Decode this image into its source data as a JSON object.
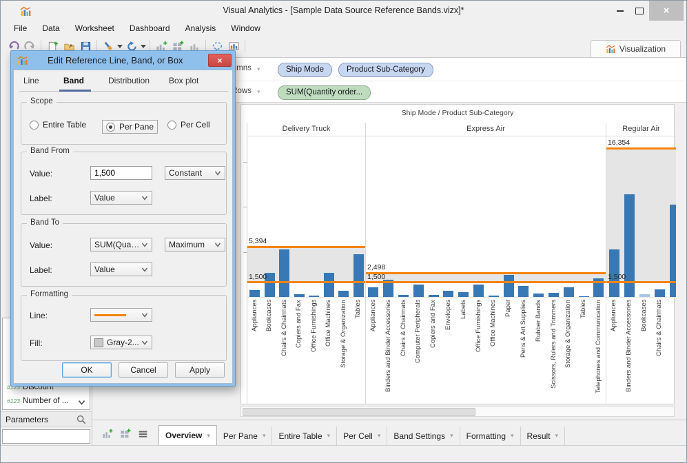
{
  "colors": {
    "accent_orange": "#f4840c",
    "bar_blue": "#3878b4",
    "bar_muted": "#a8c7e3",
    "band_fill": "#e5e5e5",
    "pill_blue": "#c7d6f1",
    "pill_green": "#bfdcbf"
  },
  "window": {
    "title": "Visual Analytics - [Sample Data Source Reference Bands.vizx]*"
  },
  "menu": {
    "items": [
      "File",
      "Data",
      "Worksheet",
      "Dashboard",
      "Analysis",
      "Window"
    ]
  },
  "toolbar": {
    "buttons": [
      {
        "icon": "undo"
      },
      {
        "icon": "redo"
      },
      {
        "sep": true
      },
      {
        "icon": "new-workbook"
      },
      {
        "icon": "open"
      },
      {
        "icon": "save"
      },
      {
        "sep": true
      },
      {
        "icon": "format-workbook",
        "caret": true
      },
      {
        "icon": "refresh",
        "caret": true
      },
      {
        "sep": true
      },
      {
        "icon": "add-worksheet"
      },
      {
        "icon": "add-dashboard"
      },
      {
        "icon": "duplicate-sheet"
      },
      {
        "sep": true
      },
      {
        "icon": "lasso-select"
      },
      {
        "icon": "presentation"
      },
      {
        "sep": true
      }
    ]
  },
  "viz_tab": {
    "label": "Visualization"
  },
  "shelves": {
    "columns_label": "Columns",
    "rows_label": "Rows",
    "columns_pills": [
      "Ship Mode",
      "Product Sub-Category"
    ],
    "rows_pills": [
      "SUM(Quantity order..."
    ]
  },
  "left_panel": {
    "fields": [
      "Discount",
      "Number of ..."
    ],
    "parameters_label": "Parameters"
  },
  "dialog": {
    "title": "Edit Reference Line, Band, or Box",
    "tabs": [
      {
        "label": "Line",
        "selected": false
      },
      {
        "label": "Band",
        "selected": true
      },
      {
        "label": "Distribution",
        "selected": false
      },
      {
        "label": "Box plot",
        "selected": false
      }
    ],
    "scope": {
      "legend": "Scope",
      "options": [
        {
          "label": "Entire Table",
          "selected": false
        },
        {
          "label": "Per Pane",
          "selected": true
        },
        {
          "label": "Per Cell",
          "selected": false
        }
      ]
    },
    "band_from": {
      "legend": "Band From",
      "value_label": "Value:",
      "value": "1,500",
      "value_type": "Constant",
      "label_label": "Label:",
      "label_value": "Value"
    },
    "band_to": {
      "legend": "Band To",
      "value_label": "Value:",
      "value_field": "SUM(Quan...",
      "aggregation": "Maximum",
      "label_label": "Label:",
      "label_value": "Value"
    },
    "formatting": {
      "legend": "Formatting",
      "line_label": "Line:",
      "fill_label": "Fill:",
      "fill_value": "Gray-2..."
    },
    "buttons": {
      "ok": "OK",
      "cancel": "Cancel",
      "apply": "Apply"
    }
  },
  "sheet_tabs": {
    "tabs": [
      {
        "label": "Overview",
        "selected": true
      },
      {
        "label": "Per Pane",
        "selected": false
      },
      {
        "label": "Entire Table",
        "selected": false
      },
      {
        "label": "Per Cell",
        "selected": false
      },
      {
        "label": "Band Settings",
        "selected": false
      },
      {
        "label": "Formatting",
        "selected": false
      },
      {
        "label": "Result",
        "selected": false
      }
    ]
  },
  "chart_data": {
    "type": "bar",
    "title": "Ship Mode / Product Sub-Category",
    "value_axis": {
      "min": 0,
      "max": 17800,
      "ticks": [
        5000,
        10000,
        15000
      ]
    },
    "band": {
      "scope": "per-pane",
      "from": 1500,
      "from_label": "1,500"
    },
    "panes": [
      {
        "name": "Delivery Truck",
        "band_to": 5394,
        "band_to_label": "5,394",
        "bars": [
          {
            "label": "Appliances",
            "value": 760
          },
          {
            "label": "Bookcases",
            "value": 2650
          },
          {
            "label": "Chairs & Chairmats",
            "value": 5300
          },
          {
            "label": "Copiers and Fax",
            "value": 310
          },
          {
            "label": "Office Furnishings",
            "value": 130
          },
          {
            "label": "Office Machines",
            "value": 2700
          },
          {
            "label": "Storage & Organization",
            "value": 700
          },
          {
            "label": "Tables",
            "value": 4700
          }
        ]
      },
      {
        "name": "Express Air",
        "band_to": 2498,
        "band_to_label": "2,498",
        "bars": [
          {
            "label": "Appliances",
            "value": 1050
          },
          {
            "label": "Binders and Binder Accessories",
            "value": 1900
          },
          {
            "label": "Chairs & Chairmats",
            "value": 260
          },
          {
            "label": "Computer Peripherals",
            "value": 1350
          },
          {
            "label": "Copiers and Fax",
            "value": 260
          },
          {
            "label": "Envelopes",
            "value": 690
          },
          {
            "label": "Labels",
            "value": 550
          },
          {
            "label": "Office Furnishings",
            "value": 1350
          },
          {
            "label": "Office Machines",
            "value": 160
          },
          {
            "label": "Paper",
            "value": 2430
          },
          {
            "label": "Pens & Art Supplies",
            "value": 1200
          },
          {
            "label": "Rubber Bands",
            "value": 350
          },
          {
            "label": "Scissors, Rulers and Trimmers",
            "value": 430
          },
          {
            "label": "Storage & Organization",
            "value": 1060
          },
          {
            "label": "Tables",
            "value": 100
          },
          {
            "label": "Telephones and Communication",
            "value": 2060
          }
        ]
      },
      {
        "name": "Regular Air",
        "band_to": 16354,
        "band_to_label": "16,354",
        "bars": [
          {
            "label": "Appliances",
            "value": 5300
          },
          {
            "label": "Binders and Binder Accessories",
            "value": 11400
          },
          {
            "label": "Bookcases",
            "value": 290,
            "muted": true
          },
          {
            "label": "Chairs & Chairmats",
            "value": 830
          },
          {
            "label": "",
            "value": 10200,
            "clipped": true
          }
        ]
      }
    ]
  }
}
